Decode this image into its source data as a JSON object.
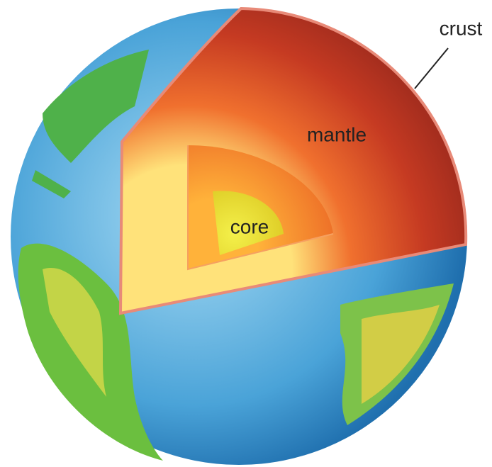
{
  "labels": {
    "crust": "crust",
    "mantle": "mantle",
    "core": "core"
  }
}
